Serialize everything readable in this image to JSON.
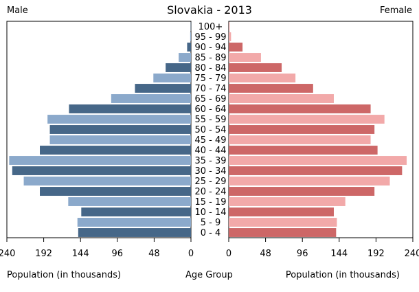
{
  "chart_data": {
    "type": "bar",
    "title": "Slovakia - 2013",
    "left_label": "Male",
    "right_label": "Female",
    "xlabel_left": "Population (in thousands)",
    "xlabel_center": "Age Group",
    "xlabel_right": "Population (in thousands)",
    "xlim": [
      0,
      240
    ],
    "ticks": [
      240,
      192,
      144,
      96,
      48,
      0
    ],
    "ticks_right": [
      0,
      48,
      96,
      144,
      192,
      240
    ],
    "categories": [
      "0 - 4",
      "5 - 9",
      "10 - 14",
      "15 - 19",
      "20 - 24",
      "25 - 29",
      "30 - 34",
      "35 - 39",
      "40 - 44",
      "45 - 49",
      "50 - 54",
      "55 - 59",
      "60 - 64",
      "65 - 69",
      "70 - 74",
      "75 - 79",
      "80 - 84",
      "85 - 89",
      "90 - 94",
      "95 - 99",
      "100+"
    ],
    "series": [
      {
        "name": "Male",
        "values": [
          147,
          148,
          143,
          160,
          197,
          218,
          233,
          237,
          197,
          184,
          184,
          187,
          159,
          104,
          73,
          49,
          33,
          16,
          5,
          1,
          0.3
        ]
      },
      {
        "name": "Female",
        "values": [
          140,
          141,
          137,
          152,
          190,
          210,
          226,
          232,
          194,
          185,
          190,
          203,
          185,
          137,
          110,
          87,
          69,
          42,
          18,
          3,
          0.8
        ]
      }
    ],
    "colors": {
      "dark_male": "#466788",
      "light_male": "#8ba9cb",
      "dark_female": "#cd6767",
      "light_female": "#f2a9a9"
    }
  }
}
